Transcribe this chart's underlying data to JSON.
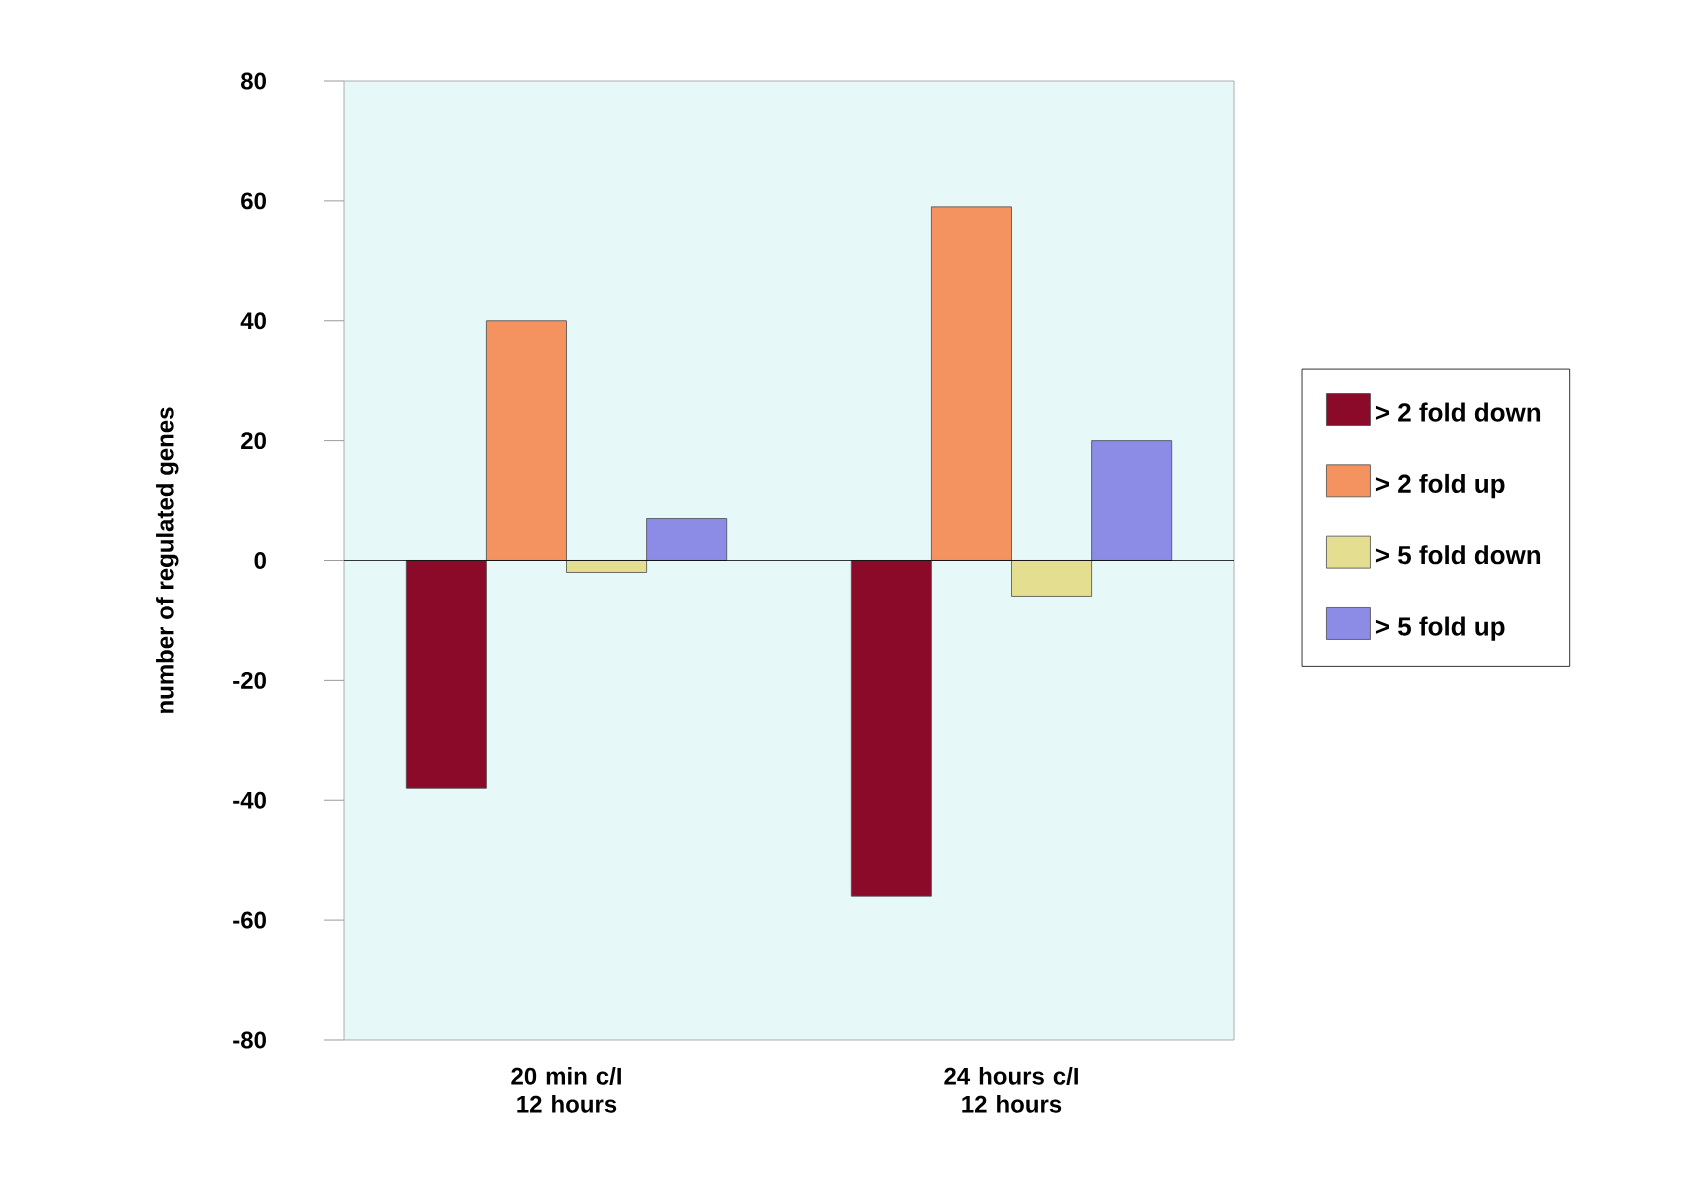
{
  "chart_data": {
    "type": "bar",
    "ylabel": "number of regulated genes",
    "categories": [
      "20 min c/I 12 hours",
      "24 hours c/I 12 hours"
    ],
    "series": [
      {
        "name": "> 2 fold down",
        "color": "#8b0a2a",
        "values": [
          -38,
          -56
        ]
      },
      {
        "name": "> 2 fold up",
        "color": "#f4935f",
        "values": [
          40,
          59
        ]
      },
      {
        "name": "> 5 fold down",
        "color": "#e4df90",
        "values": [
          -2,
          -6
        ]
      },
      {
        "name": "> 5 fold up",
        "color": "#8c8ce6",
        "values": [
          7,
          20
        ]
      }
    ],
    "ylim": [
      -80,
      80
    ],
    "yticks": [
      -80,
      -60,
      -40,
      -20,
      0,
      20,
      40,
      60,
      80
    ],
    "legend": "right"
  }
}
